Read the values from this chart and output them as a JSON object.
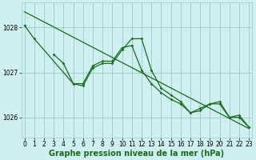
{
  "bg_color": "#cff0f0",
  "grid_color": "#99cccc",
  "line_color": "#1a6b1a",
  "xlabel": "Graphe pression niveau de la mer (hPa)",
  "xlabel_fontsize": 7,
  "tick_fontsize": 5.5,
  "yticks": [
    1026,
    1027,
    1028
  ],
  "xticks": [
    0,
    1,
    2,
    3,
    4,
    5,
    6,
    7,
    8,
    9,
    10,
    11,
    12,
    13,
    14,
    15,
    16,
    17,
    18,
    19,
    20,
    21,
    22,
    23
  ],
  "xlim": [
    -0.3,
    23.3
  ],
  "ylim": [
    1025.55,
    1028.55
  ],
  "series1_x": [
    0,
    23
  ],
  "series1_y": [
    1028.35,
    1025.75
  ],
  "series2": [
    1028.05,
    1027.75,
    null,
    null,
    null,
    1026.75,
    1026.75,
    1027.15,
    1027.25,
    1027.25,
    1027.55,
    1027.6,
    1027.05,
    1026.75,
    1026.55,
    1026.4,
    1026.3,
    1026.1,
    1026.15,
    1026.3,
    1026.3,
    1026.0,
    1026.0,
    1025.78
  ],
  "series3": [
    null,
    null,
    null,
    1027.4,
    1027.2,
    1026.75,
    1026.7,
    1027.1,
    1027.2,
    1027.2,
    1027.5,
    1027.75,
    1027.75,
    1027.05,
    1026.65,
    1026.5,
    1026.35,
    1026.1,
    1026.2,
    1026.3,
    1026.35,
    1026.0,
    1026.05,
    1025.78
  ]
}
